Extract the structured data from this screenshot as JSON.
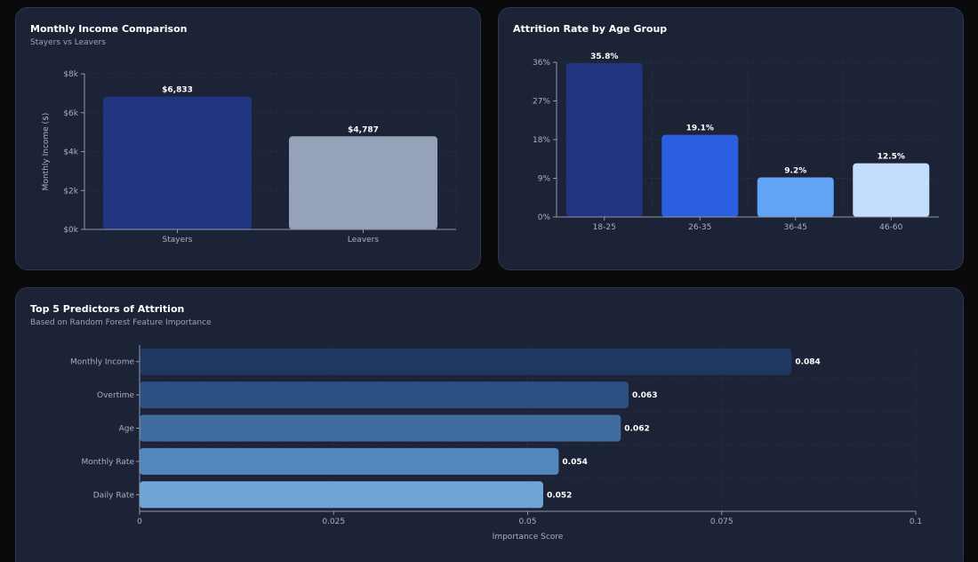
{
  "charts": {
    "income": {
      "title": "Monthly Income Comparison",
      "subtitle": "Stayers vs Leavers"
    },
    "age": {
      "title": "Attrition Rate by Age Group",
      "subtitle": ""
    },
    "predictors": {
      "title": "Top 5 Predictors of Attrition",
      "subtitle": "Based on Random Forest Feature Importance"
    }
  },
  "chart_data": [
    {
      "type": "bar",
      "title": "Monthly Income Comparison",
      "subtitle": "Stayers vs Leavers",
      "categories": [
        "Stayers",
        "Leavers"
      ],
      "values": [
        6833,
        4787
      ],
      "value_labels": [
        "$6,833",
        "$4,787"
      ],
      "colors": [
        "#21347f",
        "#96a2b8"
      ],
      "xlabel": "",
      "ylabel": "Monthly Income ($)",
      "ylim": [
        0,
        8000
      ],
      "yticks": [
        0,
        2000,
        4000,
        6000,
        8000
      ],
      "ytick_labels": [
        "$0k",
        "$2k",
        "$4k",
        "$6k",
        "$8k"
      ],
      "grid": true
    },
    {
      "type": "bar",
      "title": "Attrition Rate by Age Group",
      "categories": [
        "18-25",
        "26-35",
        "36-45",
        "46-60"
      ],
      "values": [
        35.8,
        19.1,
        9.2,
        12.5
      ],
      "value_labels": [
        "35.8%",
        "19.1%",
        "9.2%",
        "12.5%"
      ],
      "colors": [
        "#21347f",
        "#2c5fe0",
        "#62a4f4",
        "#c5ddfd"
      ],
      "xlabel": "",
      "ylabel": "",
      "ylim": [
        0,
        36
      ],
      "yticks": [
        0,
        9,
        18,
        27,
        36
      ],
      "ytick_labels": [
        "0%",
        "9%",
        "18%",
        "27%",
        "36%"
      ],
      "grid": true
    },
    {
      "type": "bar",
      "orientation": "horizontal",
      "title": "Top 5 Predictors of Attrition",
      "subtitle": "Based on Random Forest Feature Importance",
      "categories": [
        "Monthly Income",
        "Overtime",
        "Age",
        "Monthly Rate",
        "Daily Rate"
      ],
      "values": [
        0.084,
        0.063,
        0.062,
        0.054,
        0.052
      ],
      "value_labels": [
        "0.084",
        "0.063",
        "0.062",
        "0.054",
        "0.052"
      ],
      "colors": [
        "#1f3761",
        "#2d5082",
        "#3f6d9f",
        "#5287bb",
        "#6fa5d6"
      ],
      "xlabel": "Importance Score",
      "ylabel": "",
      "xlim": [
        0,
        0.1
      ],
      "xticks": [
        0,
        0.025,
        0.05,
        0.075,
        0.1
      ],
      "xtick_labels": [
        "0",
        "0.025",
        "0.05",
        "0.075",
        "0.1"
      ],
      "grid": true
    }
  ]
}
